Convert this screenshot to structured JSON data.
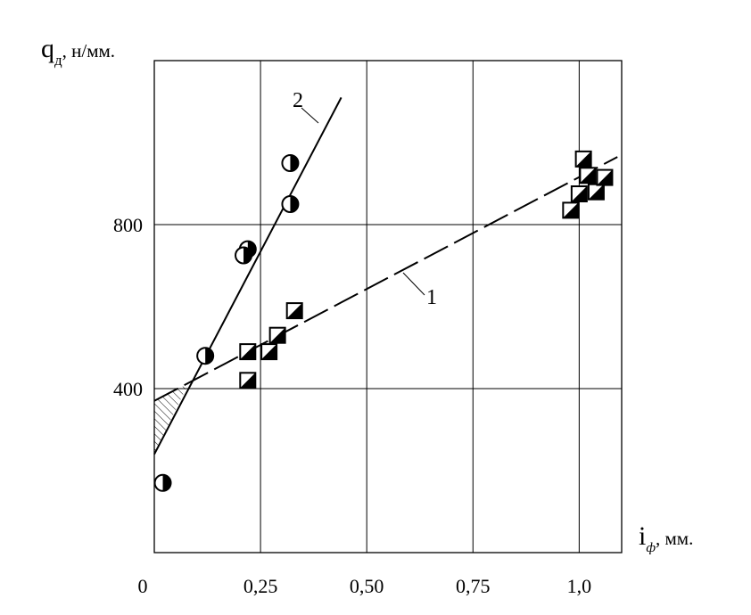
{
  "chart_data": {
    "type": "scatter",
    "y_axis_label": {
      "symbol": "q",
      "subscript": "д",
      "unit": ", н/мм."
    },
    "x_axis_label": {
      "symbol": "i",
      "subscript": "ф",
      "unit": ", мм."
    },
    "x_origin_label": "0",
    "xlim": [
      0,
      1.1
    ],
    "ylim": [
      0,
      1200
    ],
    "x_ticks": [
      {
        "value": 0.25,
        "label": "0,25"
      },
      {
        "value": 0.5,
        "label": "0,50"
      },
      {
        "value": 0.75,
        "label": "0,75"
      },
      {
        "value": 1.0,
        "label": "1,0"
      }
    ],
    "y_ticks": [
      {
        "value": 400,
        "label": "400"
      },
      {
        "value": 800,
        "label": "800"
      }
    ],
    "grid": true,
    "series": [
      {
        "name": "1",
        "marker": "half-filled-square",
        "line": {
          "x1": 0.0,
          "y1": 370,
          "x2": 1.09,
          "y2": 965,
          "style": "dashed-partly"
        },
        "points": [
          {
            "x": 0.22,
            "y": 490
          },
          {
            "x": 0.22,
            "y": 420
          },
          {
            "x": 0.27,
            "y": 490
          },
          {
            "x": 0.29,
            "y": 530
          },
          {
            "x": 0.33,
            "y": 590
          },
          {
            "x": 0.98,
            "y": 835
          },
          {
            "x": 1.0,
            "y": 875
          },
          {
            "x": 1.01,
            "y": 960
          },
          {
            "x": 1.02,
            "y": 920
          },
          {
            "x": 1.04,
            "y": 880
          },
          {
            "x": 1.06,
            "y": 915
          }
        ]
      },
      {
        "name": "2",
        "marker": "half-filled-circle",
        "line": {
          "x1": 0.0,
          "y1": 240,
          "x2": 0.44,
          "y2": 1110,
          "style": "solid"
        },
        "points": [
          {
            "x": 0.02,
            "y": 170
          },
          {
            "x": 0.12,
            "y": 480
          },
          {
            "x": 0.22,
            "y": 740
          },
          {
            "x": 0.21,
            "y": 725
          },
          {
            "x": 0.32,
            "y": 850
          },
          {
            "x": 0.32,
            "y": 950
          }
        ]
      }
    ],
    "hatched_region": [
      {
        "x": 0.0,
        "y": 370
      },
      {
        "x": 0.08,
        "y": 412
      },
      {
        "x": 0.0,
        "y": 240
      }
    ]
  }
}
